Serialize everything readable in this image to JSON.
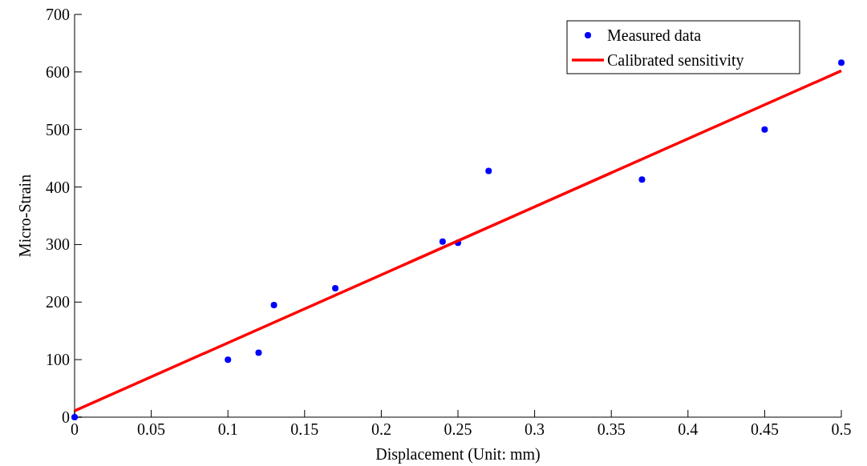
{
  "chart_data": {
    "type": "scatter",
    "xlabel": "Displacement (Unit: mm)",
    "ylabel": "Micro-Strain",
    "xlim": [
      0,
      0.5
    ],
    "xticks": [
      0,
      0.05,
      0.1,
      0.15,
      0.2,
      0.25,
      0.3,
      0.35,
      0.4,
      0.45,
      0.5
    ],
    "ylim": [
      0,
      700
    ],
    "yticks": [
      0,
      100,
      200,
      300,
      400,
      500,
      600,
      700
    ],
    "grid": false,
    "legend": "top right",
    "marker": "circle",
    "series": [
      {
        "name": "Measured data",
        "color": "#0000ff",
        "x": [
          0,
          0.1,
          0.12,
          0.13,
          0.17,
          0.24,
          0.25,
          0.27,
          0.37,
          0.45,
          0.5
        ],
        "values": [
          0,
          100,
          112,
          195,
          224,
          305,
          303,
          428,
          413,
          500,
          616
        ]
      },
      {
        "name": "Calibrated sensitivity",
        "type": "line",
        "color": "#ff0000",
        "line_style": "solid",
        "marker": "none",
        "x": [
          0,
          0.5
        ],
        "values": [
          11,
          602
        ]
      }
    ]
  }
}
